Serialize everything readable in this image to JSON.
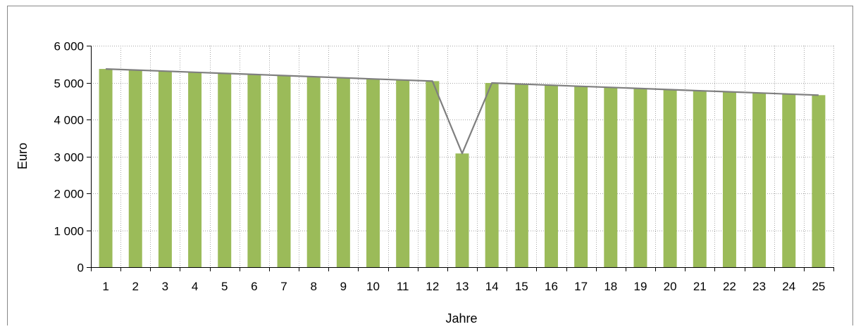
{
  "chart_data": {
    "type": "bar",
    "title": "",
    "xlabel": "Jahre",
    "ylabel": "Euro",
    "ylim": [
      0,
      6000
    ],
    "yticks": [
      0,
      1000,
      2000,
      3000,
      4000,
      5000,
      6000
    ],
    "ytick_labels": [
      "0",
      "1 000",
      "2 000",
      "3 000",
      "4 000",
      "5 000",
      "6 000"
    ],
    "categories": [
      "1",
      "2",
      "3",
      "4",
      "5",
      "6",
      "7",
      "8",
      "9",
      "10",
      "11",
      "12",
      "13",
      "14",
      "15",
      "16",
      "17",
      "18",
      "19",
      "20",
      "21",
      "22",
      "23",
      "24",
      "25"
    ],
    "values": [
      5370,
      5340,
      5310,
      5280,
      5250,
      5220,
      5190,
      5160,
      5130,
      5100,
      5070,
      5040,
      3080,
      4990,
      4960,
      4930,
      4900,
      4870,
      4840,
      4810,
      4780,
      4750,
      4720,
      4690,
      4660
    ],
    "line_values": [
      5370,
      5340,
      5310,
      5280,
      5250,
      5220,
      5190,
      5160,
      5130,
      5100,
      5070,
      5040,
      3080,
      4990,
      4960,
      4930,
      4900,
      4870,
      4840,
      4810,
      4780,
      4750,
      4720,
      4690,
      4660
    ],
    "grid": true,
    "legend": "none",
    "colors": {
      "bar": "#9bbb59",
      "line": "#7f7f7f",
      "grid": "#a6a6a6"
    }
  }
}
